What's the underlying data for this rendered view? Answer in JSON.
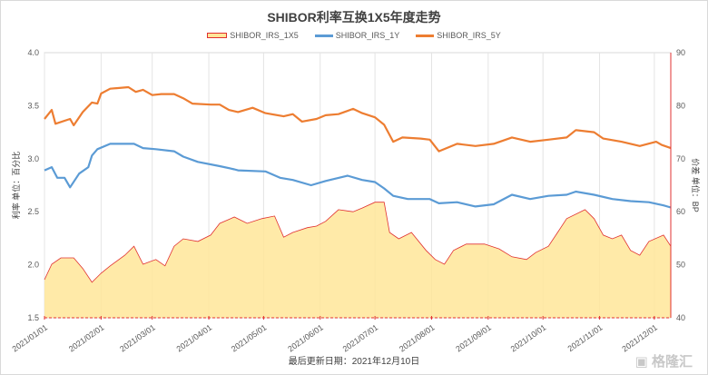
{
  "chart_data": {
    "type": "line",
    "title": "SHIBOR利率互换1X5年度走势",
    "ylabel": "利率 单位：百分比",
    "y2label": "价差 单位：BP",
    "ylim": [
      1.5,
      4.0
    ],
    "yticks": [
      "1.5",
      "2.0",
      "2.5",
      "3.0",
      "3.5",
      "4.0"
    ],
    "y2lim": [
      40,
      90
    ],
    "y2ticks": [
      "40",
      "50",
      "60",
      "70",
      "80",
      "90"
    ],
    "xlim": [
      0,
      343
    ],
    "xticks": [
      {
        "day": 0,
        "label": "2021/01/01"
      },
      {
        "day": 31,
        "label": "2021/02/01"
      },
      {
        "day": 59,
        "label": "2021/03/01"
      },
      {
        "day": 90,
        "label": "2021/04/01"
      },
      {
        "day": 120,
        "label": "2021/05/01"
      },
      {
        "day": 151,
        "label": "2021/06/01"
      },
      {
        "day": 181,
        "label": "2021/07/01"
      },
      {
        "day": 212,
        "label": "2021/08/01"
      },
      {
        "day": 243,
        "label": "2021/09/01"
      },
      {
        "day": 273,
        "label": "2021/10/01"
      },
      {
        "day": 304,
        "label": "2021/11/01"
      },
      {
        "day": 334,
        "label": "2021/12/01"
      }
    ],
    "series": [
      {
        "name": "SHIBOR_IRS_1X5",
        "axis": "right",
        "kind": "area",
        "color": "#ffe699",
        "stroke": "#e03030",
        "days": [
          0,
          4,
          9,
          16,
          21,
          26,
          31,
          36,
          44,
          49,
          54,
          61,
          66,
          71,
          76,
          84,
          91,
          96,
          104,
          111,
          119,
          126,
          131,
          136,
          144,
          149,
          154,
          161,
          169,
          174,
          181,
          186,
          189,
          194,
          201,
          209,
          214,
          219,
          224,
          231,
          241,
          249,
          256,
          264,
          269,
          276,
          281,
          286,
          296,
          301,
          306,
          311,
          316,
          321,
          326,
          331,
          339,
          343
        ],
        "values": [
          47.2,
          50.1,
          51.3,
          51.3,
          49.3,
          46.7,
          48.4,
          49.8,
          51.8,
          53.5,
          50.1,
          51.0,
          49.8,
          53.5,
          54.9,
          54.4,
          55.6,
          57.8,
          59.0,
          57.8,
          58.7,
          59.2,
          55.2,
          56.1,
          57.0,
          57.3,
          58.2,
          60.4,
          60.0,
          60.7,
          61.8,
          61.8,
          56.1,
          54.9,
          56.1,
          52.7,
          51.0,
          50.1,
          52.7,
          53.9,
          53.9,
          53.0,
          51.5,
          51.0,
          52.3,
          53.5,
          56.1,
          58.7,
          60.4,
          58.7,
          55.6,
          54.9,
          55.6,
          52.7,
          51.8,
          54.4,
          55.6,
          53.5
        ]
      },
      {
        "name": "SHIBOR_IRS_1Y",
        "axis": "left",
        "kind": "line",
        "color": "#5b9bd5",
        "days": [
          0,
          4,
          7,
          11,
          14,
          19,
          24,
          26,
          29,
          36,
          49,
          54,
          61,
          71,
          76,
          84,
          96,
          104,
          106,
          121,
          129,
          136,
          146,
          154,
          166,
          174,
          181,
          186,
          191,
          199,
          211,
          216,
          226,
          236,
          246,
          256,
          266,
          276,
          286,
          291,
          301,
          311,
          321,
          331,
          339,
          343
        ],
        "values": [
          2.89,
          2.92,
          2.82,
          2.82,
          2.73,
          2.86,
          2.92,
          3.03,
          3.09,
          3.14,
          3.14,
          3.1,
          3.09,
          3.07,
          3.02,
          2.97,
          2.93,
          2.9,
          2.89,
          2.88,
          2.82,
          2.8,
          2.75,
          2.79,
          2.84,
          2.8,
          2.78,
          2.72,
          2.65,
          2.62,
          2.62,
          2.58,
          2.59,
          2.55,
          2.57,
          2.66,
          2.62,
          2.65,
          2.66,
          2.69,
          2.66,
          2.62,
          2.6,
          2.59,
          2.56,
          2.54
        ]
      },
      {
        "name": "SHIBOR_IRS_5Y",
        "axis": "left",
        "kind": "line",
        "color": "#ed7d31",
        "days": [
          0,
          4,
          6,
          14,
          16,
          21,
          26,
          29,
          31,
          36,
          46,
          50,
          54,
          59,
          64,
          71,
          76,
          81,
          91,
          96,
          101,
          106,
          114,
          121,
          131,
          136,
          141,
          149,
          154,
          161,
          169,
          174,
          181,
          186,
          191,
          196,
          206,
          211,
          216,
          226,
          236,
          246,
          256,
          266,
          276,
          286,
          291,
          301,
          306,
          316,
          326,
          335,
          338,
          343
        ],
        "values": [
          3.375,
          3.46,
          3.33,
          3.375,
          3.315,
          3.44,
          3.53,
          3.52,
          3.615,
          3.66,
          3.675,
          3.63,
          3.65,
          3.6,
          3.61,
          3.61,
          3.57,
          3.52,
          3.51,
          3.51,
          3.46,
          3.44,
          3.48,
          3.43,
          3.4,
          3.42,
          3.35,
          3.375,
          3.41,
          3.42,
          3.47,
          3.43,
          3.39,
          3.32,
          3.16,
          3.2,
          3.19,
          3.18,
          3.07,
          3.14,
          3.12,
          3.14,
          3.2,
          3.16,
          3.18,
          3.2,
          3.27,
          3.25,
          3.19,
          3.16,
          3.12,
          3.16,
          3.13,
          3.1
        ]
      }
    ],
    "grid": "vertical",
    "legend": "top"
  },
  "footer": "最后更新日期：2021年12月10日",
  "watermark": "格隆汇"
}
